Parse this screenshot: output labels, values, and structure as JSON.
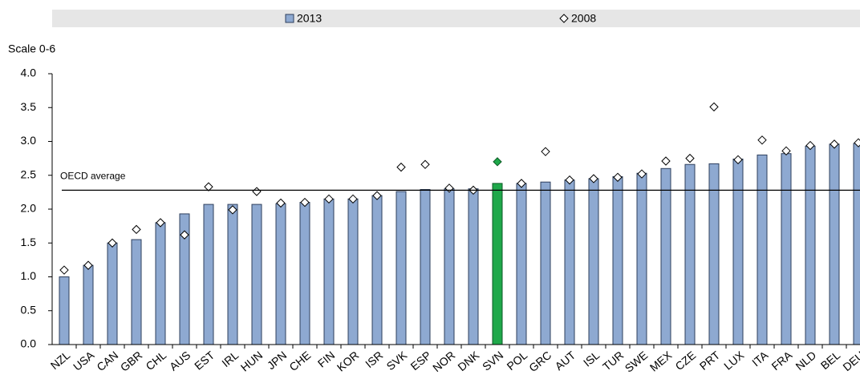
{
  "chart_data": {
    "type": "bar",
    "y_axis_label": "Scale 0-6",
    "categories": [
      "NZL",
      "USA",
      "CAN",
      "GBR",
      "CHL",
      "AUS",
      "EST",
      "IRL",
      "HUN",
      "JPN",
      "CHE",
      "FIN",
      "KOR",
      "ISR",
      "SVK",
      "ESP",
      "NOR",
      "DNK",
      "SVN",
      "POL",
      "GRC",
      "AUT",
      "ISL",
      "TUR",
      "SWE",
      "MEX",
      "CZE",
      "PRT",
      "LUX",
      "ITA",
      "FRA",
      "NLD",
      "BEL",
      "DEU"
    ],
    "series": [
      {
        "name": "2013",
        "type": "bar",
        "color": "#8ea9d1",
        "values": [
          1.0,
          1.17,
          1.5,
          1.55,
          1.8,
          1.93,
          2.07,
          2.07,
          2.07,
          2.08,
          2.1,
          2.15,
          2.15,
          2.2,
          2.26,
          2.29,
          2.3,
          2.3,
          2.38,
          2.38,
          2.4,
          2.43,
          2.45,
          2.48,
          2.53,
          2.6,
          2.66,
          2.67,
          2.74,
          2.8,
          2.82,
          2.93,
          2.96,
          2.97
        ]
      },
      {
        "name": "2008",
        "type": "marker",
        "color": "#ffffff",
        "values": [
          1.1,
          1.17,
          1.5,
          1.7,
          1.8,
          1.62,
          2.33,
          1.99,
          2.26,
          2.09,
          2.1,
          2.15,
          2.15,
          2.2,
          2.62,
          2.66,
          2.31,
          2.28,
          2.7,
          2.38,
          2.85,
          2.43,
          2.45,
          2.47,
          2.52,
          2.71,
          2.75,
          3.51,
          2.73,
          3.02,
          2.86,
          2.94,
          2.96,
          2.98
        ]
      }
    ],
    "highlight": "SVN",
    "highlight_color": "#1fa84a",
    "reference_lines": [
      {
        "value": 2.28,
        "label": "OECD average"
      }
    ],
    "ylim": [
      0,
      4
    ],
    "yticks": [
      {
        "value": 0,
        "label": "0.0"
      },
      {
        "value": 0.5,
        "label": "0.5"
      },
      {
        "value": 1,
        "label": "1.0"
      },
      {
        "value": 1.5,
        "label": "1.5"
      },
      {
        "value": 2,
        "label": "2.0"
      },
      {
        "value": 2.5,
        "label": "2.5"
      },
      {
        "value": 3,
        "label": "3.0"
      },
      {
        "value": 3.5,
        "label": "3.5"
      },
      {
        "value": 4,
        "label": "4.0"
      }
    ],
    "legend": "top"
  }
}
